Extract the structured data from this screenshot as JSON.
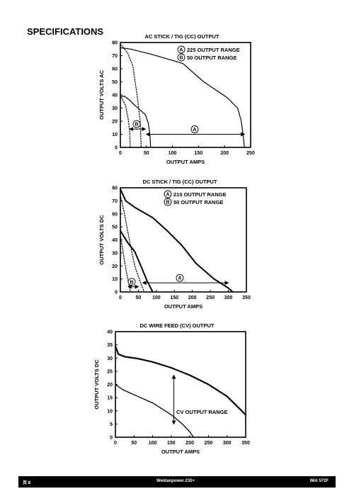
{
  "page": {
    "heading": "SPECIFICATIONS",
    "footer": {
      "page": "页 8",
      "model": "Weldanpower 230+",
      "doc": "IMA 572F"
    }
  },
  "chart_data": [
    {
      "type": "line",
      "title": "AC STICK / TIG (CC) OUTPUT",
      "xlabel": "OUTPUT AMPS",
      "ylabel": "OUTPUT VOLTS AC",
      "xlim": [
        0,
        250
      ],
      "ylim": [
        0,
        80
      ],
      "xticks": [
        "0",
        "50",
        "100",
        "150",
        "200",
        "250"
      ],
      "yticks": [
        "0",
        "10",
        "20",
        "30",
        "40",
        "50",
        "60",
        "70",
        "80"
      ],
      "legend": [
        {
          "marker": "A",
          "text": "225 OUTPUT RANGE"
        },
        {
          "marker": "B",
          "text": "50 OUTPUT RANGE"
        }
      ],
      "series": [
        {
          "marker": "A",
          "style": "solid",
          "width": 1.2,
          "points": [
            [
              0,
              76
            ],
            [
              20,
              75
            ],
            [
              60,
              71
            ],
            [
              120,
              64
            ],
            [
              160,
              50
            ],
            [
              205,
              38
            ],
            [
              225,
              30
            ],
            [
              232,
              20
            ],
            [
              236,
              8
            ],
            [
              238,
              0
            ]
          ]
        },
        {
          "marker": "A",
          "style": "dotted",
          "width": 1.2,
          "points": [
            [
              2,
              78
            ],
            [
              14,
              72
            ],
            [
              24,
              62
            ],
            [
              32,
              40
            ],
            [
              38,
              20
            ],
            [
              40,
              0
            ]
          ]
        },
        {
          "marker": "B",
          "style": "solid",
          "width": 1.2,
          "points": [
            [
              0,
              39
            ],
            [
              8,
              39
            ],
            [
              18,
              36
            ],
            [
              28,
              32
            ],
            [
              48,
              25
            ],
            [
              54,
              18
            ],
            [
              57,
              8
            ],
            [
              58,
              0
            ]
          ]
        },
        {
          "marker": "B",
          "style": "dotted",
          "width": 1.2,
          "points": [
            [
              2,
              38
            ],
            [
              10,
              32
            ],
            [
              15,
              22
            ],
            [
              18,
              12
            ],
            [
              19,
              0
            ]
          ]
        }
      ],
      "ranges": [
        {
          "marker": "A",
          "from": 50,
          "to": 238,
          "y": 10
        },
        {
          "marker": "B",
          "from": 18,
          "to": 48,
          "y": 14
        }
      ]
    },
    {
      "type": "line",
      "title": "DC STICK / TIG (CC) OUTPUT",
      "xlabel": "OUTPUT AMPS",
      "ylabel": "OUTPUT VOLTS DC",
      "xlim": [
        0,
        350
      ],
      "ylim": [
        0,
        80
      ],
      "xticks": [
        "0",
        "50",
        "100",
        "150",
        "200",
        "250",
        "300",
        "350"
      ],
      "yticks": [
        "0",
        "10",
        "20",
        "30",
        "40",
        "50",
        "60",
        "70",
        "80"
      ],
      "legend": [
        {
          "marker": "A",
          "text": "210 OUTPUT RANGE"
        },
        {
          "marker": "B",
          "text": "50 OUTPUT RANGE"
        }
      ],
      "series": [
        {
          "marker": "A",
          "style": "solid",
          "width": 2,
          "points": [
            [
              0,
              79
            ],
            [
              15,
              70
            ],
            [
              40,
              65
            ],
            [
              90,
              57
            ],
            [
              130,
              47
            ],
            [
              170,
              36
            ],
            [
              210,
              22
            ],
            [
              260,
              10
            ],
            [
              300,
              3
            ],
            [
              312,
              0
            ]
          ]
        },
        {
          "marker": "A",
          "style": "dotted",
          "width": 1.2,
          "points": [
            [
              0,
              74
            ],
            [
              10,
              62
            ],
            [
              25,
              40
            ],
            [
              40,
              20
            ],
            [
              55,
              8
            ],
            [
              66,
              0
            ]
          ]
        },
        {
          "marker": "B",
          "style": "solid",
          "width": 2,
          "points": [
            [
              0,
              47
            ],
            [
              20,
              38
            ],
            [
              40,
              31
            ],
            [
              60,
              18
            ],
            [
              75,
              8
            ],
            [
              90,
              0
            ]
          ]
        },
        {
          "marker": "B",
          "style": "dotted",
          "width": 1.2,
          "points": [
            [
              0,
              43
            ],
            [
              8,
              30
            ],
            [
              15,
              18
            ],
            [
              22,
              8
            ],
            [
              28,
              0
            ]
          ]
        }
      ],
      "ranges": [
        {
          "marker": "A",
          "from": 62,
          "to": 300,
          "y": 7
        },
        {
          "marker": "B",
          "from": 22,
          "to": 50,
          "y": 4
        }
      ]
    },
    {
      "type": "line",
      "title": "DC WIRE FEED (CV) OUTPUT",
      "xlabel": "OUTPUT AMPS",
      "ylabel": "OUTPUT VOLTS DC",
      "xlim": [
        0,
        350
      ],
      "ylim": [
        0,
        40
      ],
      "xticks": [
        "0",
        "50",
        "100",
        "150",
        "200",
        "250",
        "300",
        "350"
      ],
      "yticks": [
        "0",
        "5",
        "10",
        "15",
        "20",
        "25",
        "30",
        "35",
        "40"
      ],
      "annotation": "CV OUTPUT RANGE",
      "series": [
        {
          "style": "solid",
          "width": 2.2,
          "points": [
            [
              0,
              34.5
            ],
            [
              8,
              31.5
            ],
            [
              25,
              30.5
            ],
            [
              60,
              29.8
            ],
            [
              100,
              28.5
            ],
            [
              150,
              26.3
            ],
            [
              200,
              23.5
            ],
            [
              250,
              20
            ],
            [
              300,
              15.5
            ],
            [
              350,
              8.5
            ]
          ]
        },
        {
          "style": "solid",
          "width": 1.3,
          "points": [
            [
              0,
              20
            ],
            [
              20,
              18
            ],
            [
              60,
              15.5
            ],
            [
              100,
              13
            ],
            [
              150,
              8.5
            ],
            [
              180,
              5
            ],
            [
              200,
              2
            ],
            [
              210,
              0
            ]
          ]
        }
      ],
      "ranges": [
        {
          "from": 23.5,
          "to": 5,
          "x": 157,
          "orientation": "vertical"
        }
      ]
    }
  ]
}
